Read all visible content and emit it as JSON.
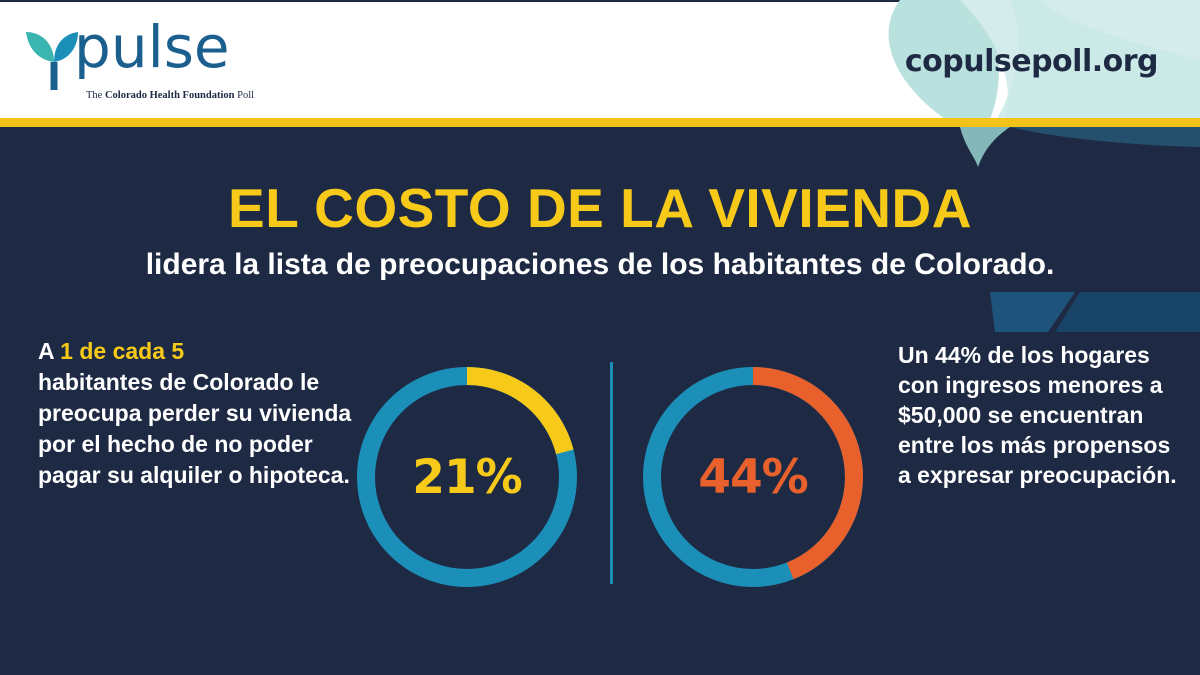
{
  "header": {
    "logo_word": "pulse",
    "logo_tagline_prefix": "The ",
    "logo_tagline_bold": "Colorado Health Foundation",
    "logo_tagline_suffix": " Poll",
    "url": "copulsepoll.org"
  },
  "colors": {
    "background": "#1e2a44",
    "gold": "#f7c919",
    "track": "#1b8fb8",
    "orange": "#e8602c",
    "logo_blue": "#1b5f8f"
  },
  "icons": {
    "logo_mark": "leaf-icon"
  },
  "chart_data": {
    "type": "pie",
    "title": "EL COSTO DE LA VIVIENDA",
    "subtitle": "lidera la lista de preocupaciones de los habitantes de Colorado.",
    "series": [
      {
        "label": "21%",
        "value": 21,
        "total": 100,
        "color": "#f7c919",
        "track_color": "#1b8fb8"
      },
      {
        "label": "44%",
        "value": 44,
        "total": 100,
        "color": "#e8602c",
        "track_color": "#1b8fb8"
      }
    ]
  },
  "left_stat": {
    "prefix": "A ",
    "highlight": "1 de cada 5",
    "rest": "habitantes de Colorado le preocupa perder su vivienda por el hecho de no poder pagar su alquiler o hipoteca."
  },
  "right_stat": {
    "text": "Un 44% de los hogares con ingresos menores a $50,000 se encuentran entre los más propensos a expresar preocupación."
  }
}
